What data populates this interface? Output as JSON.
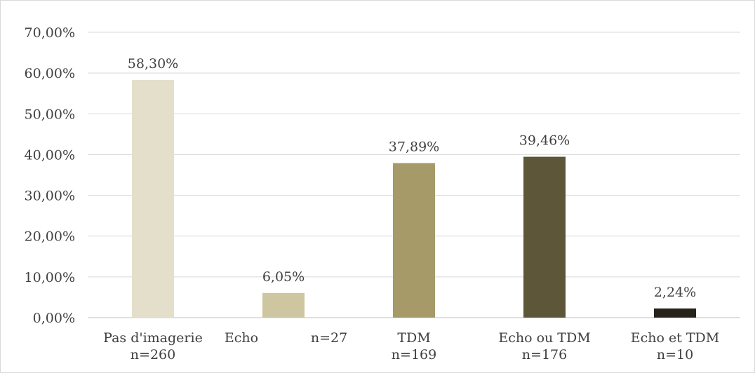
{
  "chart_data": {
    "type": "bar",
    "categories": [
      [
        "Pas d'imagerie",
        "n=260"
      ],
      [
        "Echo",
        "n=27"
      ],
      [
        "TDM",
        "n=169"
      ],
      [
        "Echo ou TDM",
        "n=176"
      ],
      [
        "Echo et TDM",
        "n=10"
      ]
    ],
    "values": [
      58.3,
      6.05,
      37.89,
      39.46,
      2.24
    ],
    "data_labels": [
      "58,30%",
      "6,05%",
      "37,89%",
      "39,46%",
      "2,24%"
    ],
    "bar_colors": [
      "#e3dfcb",
      "#cdc6a0",
      "#a59a68",
      "#5d5639",
      "#26241a"
    ],
    "ylim": [
      0,
      70
    ],
    "yticks": [
      0,
      10,
      20,
      30,
      40,
      50,
      60,
      70
    ],
    "ytick_labels": [
      "0,00%",
      "10,00%",
      "20,00%",
      "30,00%",
      "40,00%",
      "50,00%",
      "60,00%",
      "70,00%"
    ],
    "grid": true,
    "gridline_color": "#d9d9d9",
    "axis_color": "#bfbfbf",
    "title": "",
    "xlabel": "",
    "ylabel": ""
  }
}
